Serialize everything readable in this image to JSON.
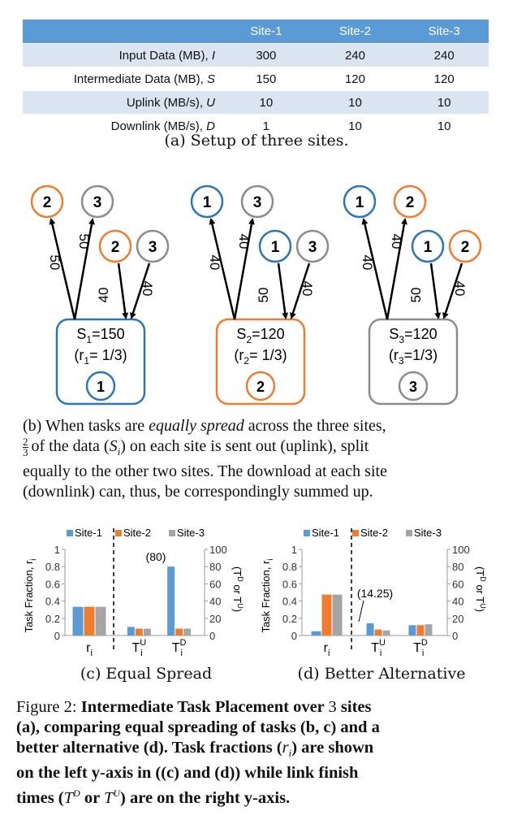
{
  "table": {
    "headers": [
      "",
      "Site-1",
      "Site-2",
      "Site-3"
    ],
    "rows": [
      {
        "label": "Input Data (MB), ",
        "sym": "I",
        "values": [
          "300",
          "240",
          "240"
        ]
      },
      {
        "label": "Intermediate Data (MB), ",
        "sym": "S",
        "values": [
          "150",
          "120",
          "120"
        ]
      },
      {
        "label": "Uplink (MB/s), ",
        "sym": "U",
        "values": [
          "10",
          "10",
          "10"
        ]
      },
      {
        "label": "Downlink (MB/s), ",
        "sym": "D",
        "values": [
          "1",
          "10",
          "10"
        ]
      }
    ]
  },
  "captions": {
    "a": "(a) Setup of three sites.",
    "b_pre": "(b) When tasks are ",
    "b_em": "equally spread",
    "b_post": " across the three sites,",
    "b_line2a": "of the data (",
    "b_line2b": ") on each site is sent out (uplink), split",
    "b_line3": "equally to the other two sites. The download at each site",
    "b_line4": "(downlink) can, thus, be correspondingly summed up.",
    "frac_num": "2",
    "frac_den": "3",
    "c": "(c) Equal Spread",
    "d": "(d) Better Alternative"
  },
  "diagram": {
    "groups": [
      {
        "top": [
          "2",
          "3"
        ],
        "right": [
          "2",
          "3"
        ],
        "out_labels": [
          "50",
          "50"
        ],
        "in_labels": [
          "40",
          "40"
        ],
        "box_main": "S",
        "box_sub": "1",
        "box_val": "=150",
        "ratio_pre": "(r",
        "ratio_sub": "1",
        "ratio_post": "= 1/3)",
        "badge": "1"
      },
      {
        "top": [
          "1",
          "3"
        ],
        "right": [
          "1",
          "3"
        ],
        "out_labels": [
          "40",
          "40"
        ],
        "in_labels": [
          "50",
          "40"
        ],
        "box_main": "S",
        "box_sub": "2",
        "box_val": "=120",
        "ratio_pre": "(r",
        "ratio_sub": "2",
        "ratio_post": "= 1/3)",
        "badge": "2"
      },
      {
        "top": [
          "1",
          "2"
        ],
        "right": [
          "1",
          "2"
        ],
        "out_labels": [
          "40",
          "40"
        ],
        "in_labels": [
          "50",
          "40"
        ],
        "box_main": "S",
        "box_sub": "3",
        "box_val": "=120",
        "ratio_pre": "(r",
        "ratio_sub": "3",
        "ratio_post": "=1/3)",
        "badge": "3"
      }
    ]
  },
  "colors": {
    "site1": "#2e75b6",
    "site2": "#ed7d31",
    "site3": "#8c8c8c",
    "bar1": "#5b9bd5",
    "bar2": "#ed7d31",
    "bar3": "#a5a5a5",
    "tableHead": "#5b9bd5",
    "tableStripe": "#dbe5f2"
  },
  "chart_data": [
    {
      "type": "bar",
      "title": "",
      "legend": [
        "Site-1",
        "Site-2",
        "Site-3"
      ],
      "categories": [
        "r_i",
        "T_i^U",
        "T_i^D"
      ],
      "left_axis": {
        "label": "Task Fraction, r_i",
        "ticks": [
          "0",
          "0.2",
          "0.4",
          "0.6",
          "0.8",
          "1"
        ],
        "ylim": [
          0,
          1
        ]
      },
      "right_axis": {
        "label": "(T^D or T^U)",
        "ticks": [
          "0",
          "20",
          "40",
          "60",
          "80",
          "100"
        ],
        "ylim": [
          0,
          100
        ]
      },
      "series": [
        {
          "name": "Site-1",
          "values": [
            0.3333,
            10,
            80
          ]
        },
        {
          "name": "Site-2",
          "values": [
            0.3333,
            8,
            8
          ]
        },
        {
          "name": "Site-3",
          "values": [
            0.3333,
            8,
            8
          ]
        }
      ],
      "annotation": "(80)"
    },
    {
      "type": "bar",
      "title": "",
      "legend": [
        "Site-1",
        "Site-2",
        "Site-3"
      ],
      "categories": [
        "r_i",
        "T_i^U",
        "T_i^D"
      ],
      "left_axis": {
        "label": "Task Fraction, r_i",
        "ticks": [
          "0",
          "0.2",
          "0.4",
          "0.6",
          "0.8",
          "1"
        ],
        "ylim": [
          0,
          1
        ]
      },
      "right_axis": {
        "label": "(T^D or T^U)",
        "ticks": [
          "0",
          "20",
          "40",
          "60",
          "80",
          "100"
        ],
        "ylim": [
          0,
          100
        ]
      },
      "series": [
        {
          "name": "Site-1",
          "values": [
            0.05,
            14.25,
            12
          ]
        },
        {
          "name": "Site-2",
          "values": [
            0.475,
            7,
            12
          ]
        },
        {
          "name": "Site-3",
          "values": [
            0.475,
            6,
            13
          ]
        }
      ],
      "annotation": "(14.25)"
    }
  ],
  "figure": {
    "line1_pre": "Figure 2: ",
    "line1_bold": "Intermediate Task Placement over ",
    "line1_num": "3",
    "line1_end": " sites",
    "line2": "(a), comparing equal spreading of tasks (b, c) and a",
    "line3": "better alternative (d). Task fractions (",
    "line3_r": "r",
    "line3_i": "i",
    "line3_end": ") are shown",
    "line4": "on the left y-axis in ((c) and (d)) while link finish",
    "line5_pre": "times (",
    "line5_T1": "T",
    "line5_sup1": "D",
    "line5_or": " or ",
    "line5_sup2": "U",
    "line5_post": ") are on the right y-axis."
  }
}
